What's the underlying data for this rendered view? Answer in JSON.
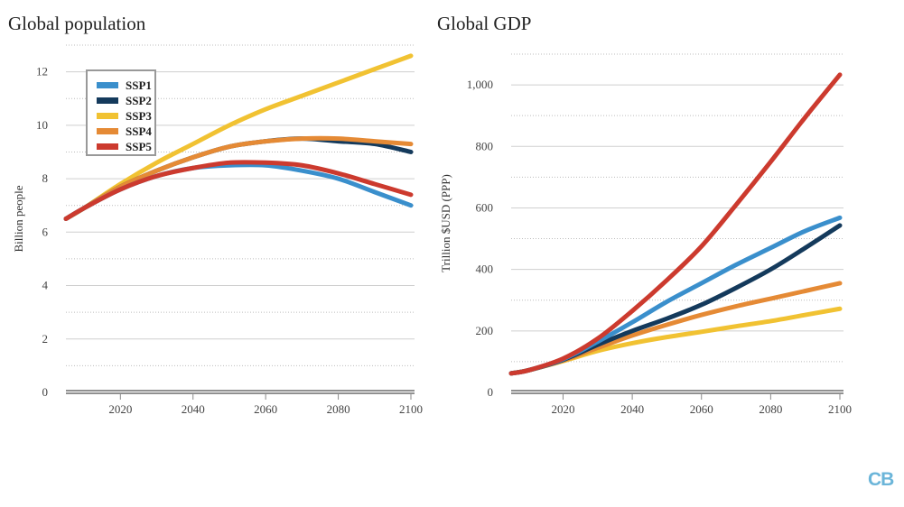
{
  "series_colors": {
    "SSP1": "#3a8fcc",
    "SSP2": "#143a5c",
    "SSP3": "#f1c232",
    "SSP4": "#e58a35",
    "SSP5": "#cc3a2e"
  },
  "legend": {
    "placement": "top-left",
    "items": [
      {
        "label": "SSP1",
        "color": "#3a8fcc"
      },
      {
        "label": "SSP2",
        "color": "#143a5c"
      },
      {
        "label": "SSP3",
        "color": "#f1c232"
      },
      {
        "label": "SSP4",
        "color": "#e58a35"
      },
      {
        "label": "SSP5",
        "color": "#cc3a2e"
      }
    ]
  },
  "logo": {
    "text": "CB"
  },
  "chart_data": [
    {
      "type": "line",
      "title": "Global population",
      "xlabel": "",
      "ylabel": "Billion people",
      "xlim": [
        2005,
        2100
      ],
      "ylim": [
        0,
        13
      ],
      "xticks": [
        2020,
        2040,
        2060,
        2080,
        2100
      ],
      "yticks": [
        0,
        2,
        4,
        6,
        8,
        10,
        12
      ],
      "ytick_labels": [
        "0",
        "2",
        "4",
        "6",
        "8",
        "10",
        "12"
      ],
      "grid": true,
      "x": [
        2005,
        2010,
        2020,
        2030,
        2040,
        2050,
        2060,
        2070,
        2080,
        2090,
        2100
      ],
      "series": [
        {
          "name": "SSP1",
          "values": [
            6.5,
            6.9,
            7.6,
            8.1,
            8.4,
            8.5,
            8.5,
            8.3,
            8.0,
            7.5,
            7.0
          ]
        },
        {
          "name": "SSP2",
          "values": [
            6.5,
            6.9,
            7.7,
            8.3,
            8.8,
            9.2,
            9.4,
            9.5,
            9.4,
            9.3,
            9.0
          ]
        },
        {
          "name": "SSP3",
          "values": [
            6.5,
            6.9,
            7.8,
            8.6,
            9.3,
            10.0,
            10.6,
            11.1,
            11.6,
            12.1,
            12.6
          ]
        },
        {
          "name": "SSP4",
          "values": [
            6.5,
            6.9,
            7.7,
            8.3,
            8.8,
            9.2,
            9.4,
            9.5,
            9.5,
            9.4,
            9.3
          ]
        },
        {
          "name": "SSP5",
          "values": [
            6.5,
            6.9,
            7.6,
            8.1,
            8.4,
            8.6,
            8.6,
            8.5,
            8.2,
            7.8,
            7.4
          ]
        }
      ]
    },
    {
      "type": "line",
      "title": "Global GDP",
      "xlabel": "",
      "ylabel": "Trillion $USD (PPP)",
      "xlim": [
        2005,
        2100
      ],
      "ylim": [
        0,
        1100
      ],
      "xticks": [
        2020,
        2040,
        2060,
        2080,
        2100
      ],
      "yticks": [
        0,
        200,
        400,
        600,
        800,
        1000
      ],
      "ytick_labels": [
        "0",
        "200",
        "400",
        "600",
        "800",
        "1,000"
      ],
      "grid": true,
      "x": [
        2005,
        2010,
        2020,
        2030,
        2040,
        2050,
        2060,
        2070,
        2080,
        2090,
        2100
      ],
      "series": [
        {
          "name": "SSP1",
          "values": [
            62,
            72,
            108,
            165,
            228,
            295,
            355,
            415,
            470,
            525,
            568
          ]
        },
        {
          "name": "SSP2",
          "values": [
            62,
            72,
            106,
            155,
            200,
            240,
            285,
            340,
            400,
            470,
            543
          ]
        },
        {
          "name": "SSP3",
          "values": [
            62,
            72,
            102,
            135,
            160,
            180,
            197,
            215,
            232,
            252,
            272
          ]
        },
        {
          "name": "SSP4",
          "values": [
            62,
            72,
            104,
            145,
            185,
            220,
            252,
            280,
            305,
            330,
            355
          ]
        },
        {
          "name": "SSP5",
          "values": [
            62,
            72,
            110,
            175,
            265,
            365,
            475,
            610,
            750,
            895,
            1033
          ]
        }
      ]
    }
  ]
}
